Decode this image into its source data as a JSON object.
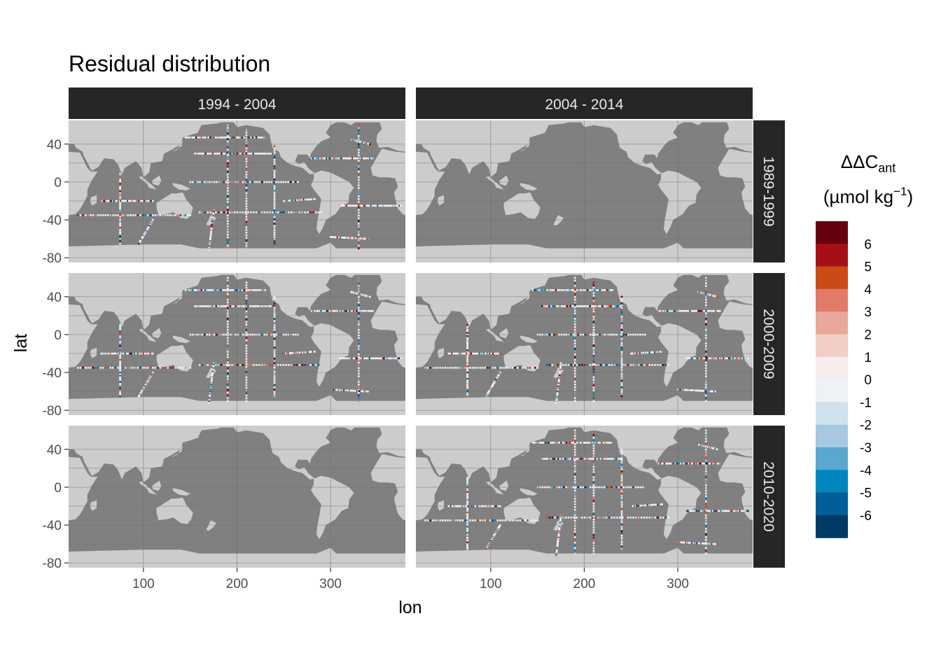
{
  "chart_data": {
    "type": "heatmap",
    "title": "Residual distribution",
    "xlabel": "lon",
    "ylabel": "lat",
    "facet_cols": [
      "1994 - 2004",
      "2004 - 2014"
    ],
    "facet_rows": [
      "1989-1999",
      "2000-2009",
      "2010-2020"
    ],
    "xlim": [
      20,
      380
    ],
    "ylim": [
      -85,
      65
    ],
    "x_ticks": [
      100,
      200,
      300
    ],
    "y_ticks": [
      40,
      0,
      -40,
      -80
    ],
    "legend": {
      "title_main": "ΔΔC",
      "title_sub": "ant",
      "title_unit": "(µmol kg",
      "title_sup": "−1",
      "title_close": ")",
      "placement": "right",
      "bins": [
        {
          "label": "6",
          "color": "#67000d"
        },
        {
          "label": "5",
          "color": "#a50f15"
        },
        {
          "label": "4",
          "color": "#cb4b16"
        },
        {
          "label": "3",
          "color": "#e07b6a"
        },
        {
          "label": "2",
          "color": "#eaa79b"
        },
        {
          "label": "1",
          "color": "#f3cdc6"
        },
        {
          "label": "0",
          "color": "#f7ecec"
        },
        {
          "label": "-1",
          "color": "#eef2f6"
        },
        {
          "label": "-2",
          "color": "#d0e1ef"
        },
        {
          "label": "-3",
          "color": "#a6c8e0"
        },
        {
          "label": "-4",
          "color": "#5aa8d0"
        },
        {
          "label": "-5",
          "color": "#0086bf"
        },
        {
          "label": "-6",
          "color": "#005f99"
        },
        {
          "label": "",
          "color": "#003a66"
        }
      ]
    },
    "panels_with_data": [
      {
        "col": "1994 - 2004",
        "row": "1989-1999",
        "has_data": true
      },
      {
        "col": "2004 - 2014",
        "row": "1989-1999",
        "has_data": false
      },
      {
        "col": "1994 - 2004",
        "row": "2000-2009",
        "has_data": true
      },
      {
        "col": "2004 - 2014",
        "row": "2000-2009",
        "has_data": true
      },
      {
        "col": "1994 - 2004",
        "row": "2010-2020",
        "has_data": false
      },
      {
        "col": "2004 - 2014",
        "row": "2010-2020",
        "has_data": true
      }
    ]
  },
  "colors": {
    "land": "#cccccc",
    "ocean": "#808080",
    "strip": "#262626",
    "grid": "#6e6e6e"
  }
}
